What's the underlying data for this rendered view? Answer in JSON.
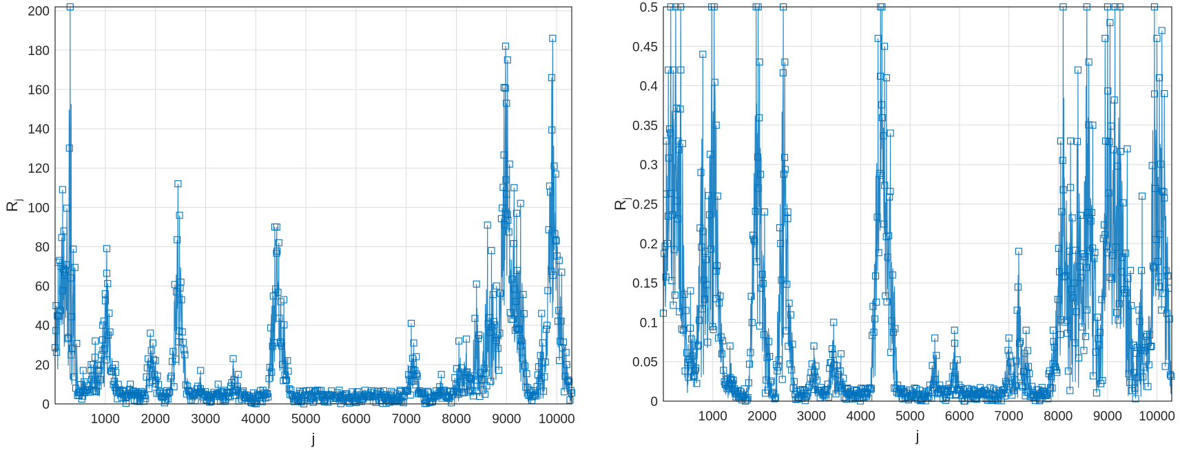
{
  "colors": {
    "series": "#0072BD",
    "grid": "#dcdcdc",
    "axis": "#262626"
  },
  "chart_data": [
    {
      "type": "line",
      "marker": "square",
      "xlabel": "j",
      "ylabel_main": "R",
      "ylabel_sub": "j",
      "xlim": [
        0,
        10300
      ],
      "ylim": [
        0,
        202
      ],
      "xticks": [
        1000,
        2000,
        3000,
        4000,
        5000,
        6000,
        7000,
        8000,
        9000,
        10000
      ],
      "yticks": [
        0,
        20,
        40,
        60,
        80,
        100,
        120,
        140,
        160,
        180,
        200
      ],
      "grid": true,
      "peaks": [
        [
          20,
          50
        ],
        [
          60,
          72
        ],
        [
          90,
          73
        ],
        [
          120,
          70
        ],
        [
          150,
          109
        ],
        [
          175,
          88
        ],
        [
          200,
          67
        ],
        [
          300,
          202
        ],
        [
          320,
          25
        ],
        [
          560,
          17
        ],
        [
          720,
          20
        ],
        [
          800,
          32
        ],
        [
          950,
          40
        ],
        [
          1000,
          56
        ],
        [
          1030,
          79
        ],
        [
          1060,
          35
        ],
        [
          1200,
          20
        ],
        [
          1500,
          10
        ],
        [
          1900,
          36
        ],
        [
          1950,
          31
        ],
        [
          2000,
          22
        ],
        [
          2420,
          57
        ],
        [
          2450,
          112
        ],
        [
          2480,
          96
        ],
        [
          2520,
          53
        ],
        [
          2900,
          17
        ],
        [
          3250,
          10
        ],
        [
          3550,
          23
        ],
        [
          3650,
          15
        ],
        [
          4380,
          90
        ],
        [
          4420,
          90
        ],
        [
          4460,
          82
        ],
        [
          4500,
          52
        ],
        [
          4560,
          53
        ],
        [
          6200,
          5
        ],
        [
          7100,
          41
        ],
        [
          7150,
          31
        ],
        [
          7200,
          24
        ],
        [
          7700,
          15
        ],
        [
          8050,
          32
        ],
        [
          8200,
          33
        ],
        [
          8400,
          61
        ],
        [
          8620,
          91
        ],
        [
          8700,
          78
        ],
        [
          8800,
          60
        ],
        [
          8950,
          161
        ],
        [
          8980,
          182
        ],
        [
          9000,
          153
        ],
        [
          9020,
          175
        ],
        [
          9060,
          122
        ],
        [
          9150,
          110
        ],
        [
          9200,
          97
        ],
        [
          9280,
          102
        ],
        [
          9700,
          46
        ],
        [
          9900,
          166
        ],
        [
          9920,
          186
        ],
        [
          9950,
          121
        ],
        [
          9980,
          117
        ],
        [
          10050,
          73
        ],
        [
          10100,
          67
        ],
        [
          10200,
          20
        ]
      ]
    },
    {
      "type": "line",
      "marker": "square",
      "xlabel": "j",
      "ylabel_main": "R",
      "ylabel_sub": "j",
      "xlim": [
        0,
        10300
      ],
      "ylim": [
        0,
        0.5
      ],
      "xticks": [
        1000,
        2000,
        3000,
        4000,
        5000,
        6000,
        7000,
        8000,
        9000,
        10000
      ],
      "yticks": [
        0,
        0.05,
        0.1,
        0.15,
        0.2,
        0.25,
        0.3,
        0.35,
        0.4,
        0.45,
        0.5
      ],
      "grid": true,
      "peaks": [
        [
          60,
          0.33
        ],
        [
          100,
          0.42
        ],
        [
          150,
          0.5
        ],
        [
          200,
          0.42
        ],
        [
          250,
          0.5
        ],
        [
          300,
          0.33
        ],
        [
          350,
          0.5
        ],
        [
          550,
          0.14
        ],
        [
          760,
          0.29
        ],
        [
          800,
          0.44
        ],
        [
          850,
          0.19
        ],
        [
          980,
          0.5
        ],
        [
          1030,
          0.5
        ],
        [
          1070,
          0.35
        ],
        [
          1100,
          0.26
        ],
        [
          1350,
          0.07
        ],
        [
          1880,
          0.5
        ],
        [
          1920,
          0.5
        ],
        [
          1950,
          0.43
        ],
        [
          2050,
          0.24
        ],
        [
          2430,
          0.5
        ],
        [
          2460,
          0.43
        ],
        [
          2520,
          0.24
        ],
        [
          3050,
          0.07
        ],
        [
          3450,
          0.1
        ],
        [
          3600,
          0.06
        ],
        [
          4350,
          0.46
        ],
        [
          4400,
          0.5
        ],
        [
          4430,
          0.5
        ],
        [
          4480,
          0.45
        ],
        [
          4520,
          0.41
        ],
        [
          4600,
          0.34
        ],
        [
          5500,
          0.08
        ],
        [
          5900,
          0.09
        ],
        [
          7000,
          0.08
        ],
        [
          7200,
          0.19
        ],
        [
          7350,
          0.09
        ],
        [
          7900,
          0.09
        ],
        [
          8050,
          0.33
        ],
        [
          8100,
          0.5
        ],
        [
          8250,
          0.33
        ],
        [
          8400,
          0.42
        ],
        [
          8580,
          0.5
        ],
        [
          8620,
          0.43
        ],
        [
          8700,
          0.35
        ],
        [
          8950,
          0.46
        ],
        [
          9000,
          0.5
        ],
        [
          9050,
          0.48
        ],
        [
          9150,
          0.5
        ],
        [
          9250,
          0.5
        ],
        [
          9400,
          0.32
        ],
        [
          9700,
          0.26
        ],
        [
          9950,
          0.5
        ],
        [
          10000,
          0.46
        ],
        [
          10050,
          0.41
        ],
        [
          10100,
          0.47
        ],
        [
          10150,
          0.39
        ]
      ]
    }
  ]
}
